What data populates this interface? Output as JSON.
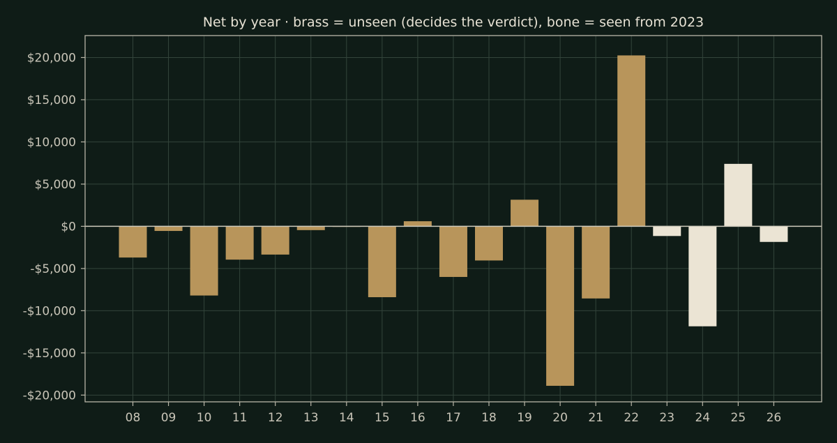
{
  "chart_data": {
    "type": "bar",
    "title": "Net by year  ·  brass = unseen (decides the verdict), bone = seen from 2023",
    "xlabel": "",
    "ylabel": "",
    "categories": [
      "08",
      "09",
      "10",
      "11",
      "12",
      "13",
      "14",
      "15",
      "16",
      "17",
      "18",
      "19",
      "20",
      "21",
      "22",
      "23",
      "24",
      "25",
      "26"
    ],
    "values": [
      -3700,
      -550,
      -8200,
      -3950,
      -3350,
      -450,
      -50,
      -8400,
      600,
      -6000,
      -4050,
      3150,
      -18900,
      -8550,
      20250,
      -1150,
      -11850,
      7400,
      -1850
    ],
    "groups": [
      "unseen",
      "unseen",
      "unseen",
      "unseen",
      "unseen",
      "unseen",
      "unseen",
      "unseen",
      "unseen",
      "unseen",
      "unseen",
      "unseen",
      "unseen",
      "unseen",
      "unseen",
      "seen",
      "seen",
      "seen",
      "seen"
    ],
    "group_colors": {
      "unseen": "#b8955b",
      "seen": "#ebe4d4"
    },
    "ylim": [
      -20800,
      22600
    ],
    "yticks": [
      20000,
      15000,
      10000,
      5000,
      0,
      -5000,
      -10000,
      -15000,
      -20000
    ],
    "ytick_labels": [
      "$20,000",
      "$15,000",
      "$10,000",
      "$5,000",
      "$0",
      "-$5,000",
      "-$10,000",
      "-$15,000",
      "-$20,000"
    ],
    "grid": true,
    "legend": "none"
  }
}
